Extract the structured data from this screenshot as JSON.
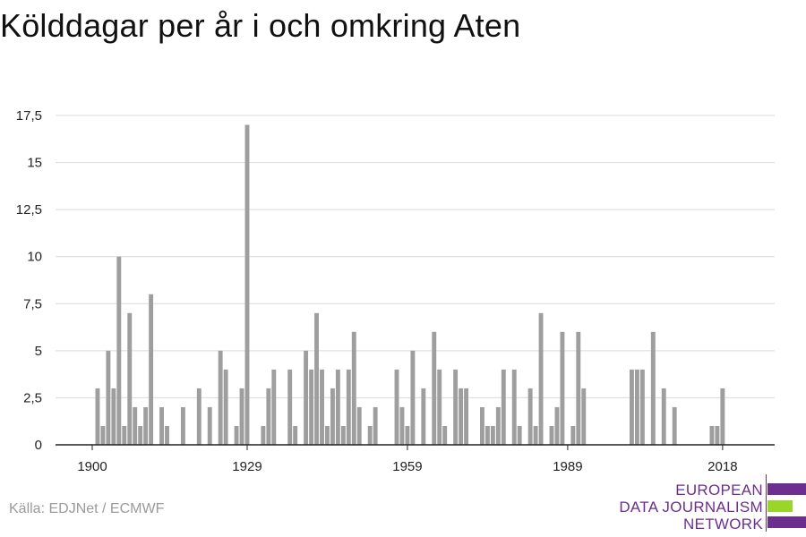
{
  "title": "Kölddagar per år i och omkring Aten",
  "source": "Källa: EDJNet / ECMWF",
  "logo": {
    "lines": [
      "EUROPEAN",
      "DATA JOURNALISM",
      "NETWORK"
    ],
    "colors": [
      "#6d2f8f",
      "#9ad62a",
      "#6d2f8f"
    ]
  },
  "colors": {
    "bar": "#9e9e9e",
    "grid": "#d9d9d9",
    "axis": "#222222"
  },
  "chart_data": {
    "type": "bar",
    "title": "Kölddagar per år i och omkring Aten",
    "xlabel": "",
    "ylabel": "",
    "ylim": [
      0,
      17.5
    ],
    "yticks": [
      0,
      2.5,
      5,
      7.5,
      10,
      12.5,
      15,
      17.5
    ],
    "ytick_labels": [
      "0",
      "2,5",
      "5",
      "7,5",
      "10",
      "12,5",
      "15",
      "17,5"
    ],
    "xticks": [
      1900,
      1929,
      1959,
      1989,
      2018
    ],
    "xtick_labels": [
      "1900",
      "1929",
      "1959",
      "1989",
      "2018"
    ],
    "xlim": [
      1900,
      2020
    ],
    "grid": true,
    "legend": "none",
    "x": [
      1900,
      1901,
      1902,
      1903,
      1904,
      1905,
      1906,
      1907,
      1908,
      1909,
      1910,
      1911,
      1912,
      1913,
      1914,
      1915,
      1916,
      1917,
      1918,
      1919,
      1920,
      1921,
      1922,
      1923,
      1924,
      1925,
      1926,
      1927,
      1928,
      1929,
      1930,
      1931,
      1932,
      1933,
      1934,
      1935,
      1936,
      1937,
      1938,
      1939,
      1940,
      1941,
      1942,
      1943,
      1944,
      1945,
      1946,
      1947,
      1948,
      1949,
      1950,
      1951,
      1952,
      1953,
      1954,
      1955,
      1956,
      1957,
      1958,
      1959,
      1960,
      1961,
      1962,
      1963,
      1964,
      1965,
      1966,
      1967,
      1968,
      1969,
      1970,
      1971,
      1972,
      1973,
      1974,
      1975,
      1976,
      1977,
      1978,
      1979,
      1980,
      1981,
      1982,
      1983,
      1984,
      1985,
      1986,
      1987,
      1988,
      1989,
      1990,
      1991,
      1992,
      1993,
      1994,
      1995,
      1996,
      1997,
      1998,
      1999,
      2000,
      2001,
      2002,
      2003,
      2004,
      2005,
      2006,
      2007,
      2008,
      2009,
      2010,
      2011,
      2012,
      2013,
      2014,
      2015,
      2016,
      2017,
      2018,
      2019
    ],
    "values": [
      0,
      3,
      1,
      5,
      3,
      10,
      1,
      7,
      2,
      1,
      2,
      8,
      0,
      2,
      1,
      0,
      0,
      2,
      0,
      0,
      3,
      0,
      2,
      0,
      5,
      4,
      0,
      1,
      3,
      17,
      0,
      0,
      1,
      3,
      4,
      0,
      0,
      4,
      1,
      0,
      5,
      4,
      7,
      4,
      1,
      3,
      4,
      1,
      4,
      6,
      2,
      0,
      1,
      2,
      0,
      0,
      0,
      4,
      2,
      1,
      5,
      0,
      3,
      0,
      6,
      4,
      1,
      0,
      4,
      3,
      3,
      0,
      0,
      2,
      1,
      1,
      2,
      4,
      0,
      4,
      1,
      0,
      3,
      1,
      7,
      0,
      1,
      2,
      6,
      0,
      1,
      6,
      3,
      0,
      0,
      0,
      0,
      0,
      0,
      0,
      0,
      4,
      4,
      4,
      0,
      6,
      0,
      3,
      0,
      2,
      0,
      0,
      0,
      0,
      0,
      0,
      1,
      1,
      3,
      0
    ]
  }
}
